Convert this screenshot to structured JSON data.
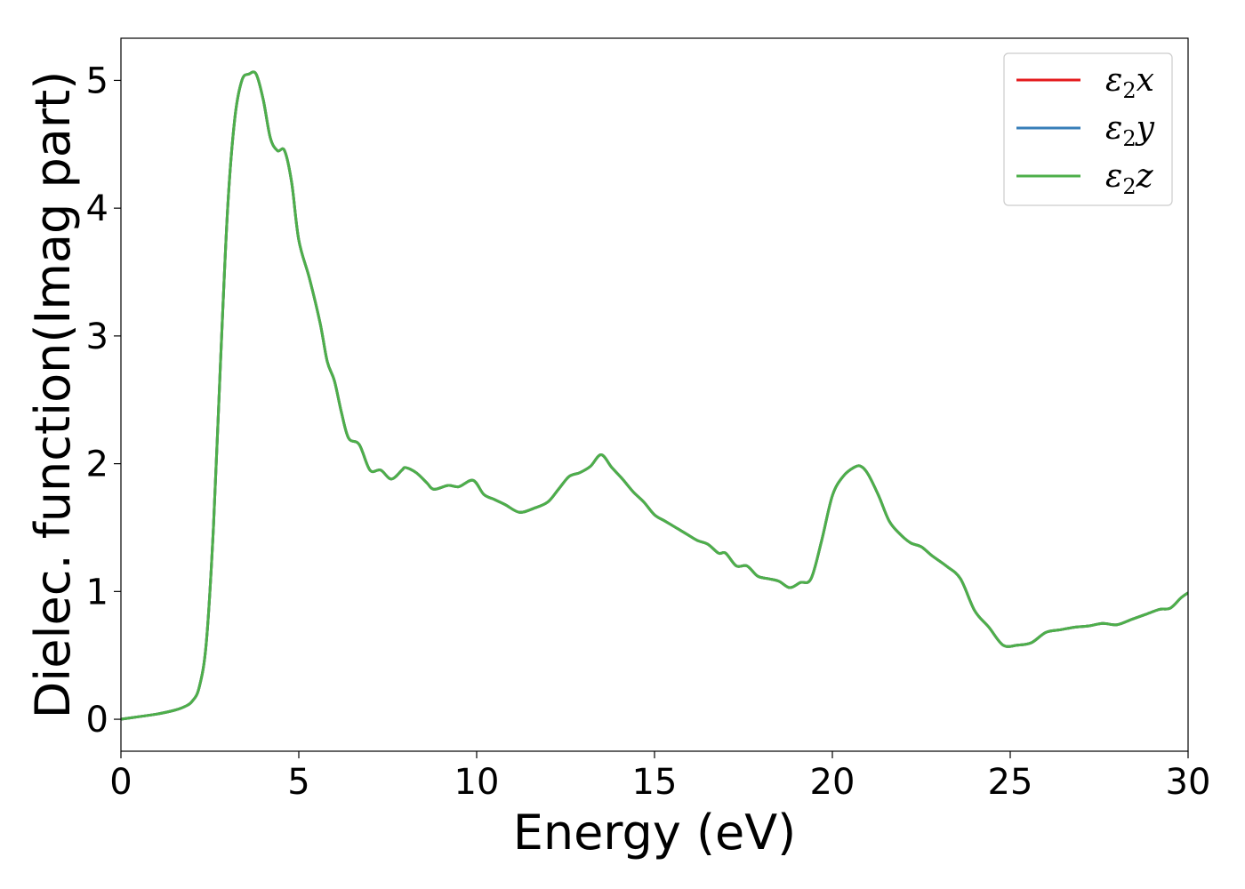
{
  "chart_data": {
    "type": "line",
    "title": "",
    "xlabel": "Energy (eV)",
    "ylabel": "Dielec. function(Imag part)",
    "xlim": [
      0,
      30
    ],
    "ylim": [
      -0.25,
      5.33
    ],
    "xticks": [
      0,
      5,
      10,
      15,
      20,
      25,
      30
    ],
    "yticks": [
      0,
      1,
      2,
      3,
      4,
      5
    ],
    "grid": false,
    "legend_position": "top-right",
    "series": [
      {
        "name": "ε2x",
        "label": {
          "base": "ε",
          "sub": "2",
          "var": "x"
        },
        "color": "#e41a1c",
        "x": [
          0,
          0.5,
          1.0,
          1.5,
          1.8,
          2.0,
          2.2,
          2.4,
          2.6,
          2.8,
          3.0,
          3.2,
          3.4,
          3.6,
          3.8,
          4.0,
          4.2,
          4.4,
          4.6,
          4.8,
          5.0,
          5.3,
          5.6,
          5.8,
          6.0,
          6.2,
          6.4,
          6.7,
          7.0,
          7.3,
          7.6,
          7.9,
          8.0,
          8.3,
          8.6,
          8.8,
          9.2,
          9.5,
          9.9,
          10.2,
          10.5,
          10.8,
          11.2,
          11.6,
          12.0,
          12.3,
          12.6,
          12.9,
          13.2,
          13.5,
          13.8,
          14.1,
          14.4,
          14.7,
          15.0,
          15.3,
          15.6,
          15.9,
          16.2,
          16.5,
          16.8,
          17.0,
          17.3,
          17.6,
          17.9,
          18.2,
          18.5,
          18.8,
          19.1,
          19.4,
          19.7,
          20.0,
          20.3,
          20.6,
          20.8,
          21.0,
          21.3,
          21.6,
          21.9,
          22.2,
          22.5,
          22.8,
          23.2,
          23.6,
          24.0,
          24.4,
          24.8,
          25.2,
          25.6,
          26.0,
          26.4,
          26.8,
          27.2,
          27.6,
          28.0,
          28.4,
          28.8,
          29.2,
          29.5,
          29.8,
          30.0
        ],
        "y": [
          0.0,
          0.02,
          0.04,
          0.07,
          0.1,
          0.14,
          0.25,
          0.6,
          1.5,
          2.8,
          4.0,
          4.7,
          5.0,
          5.05,
          5.05,
          4.85,
          4.55,
          4.45,
          4.45,
          4.2,
          3.75,
          3.45,
          3.1,
          2.8,
          2.65,
          2.4,
          2.2,
          2.15,
          1.95,
          1.95,
          1.88,
          1.95,
          1.97,
          1.93,
          1.85,
          1.8,
          1.83,
          1.82,
          1.87,
          1.76,
          1.72,
          1.68,
          1.62,
          1.65,
          1.7,
          1.8,
          1.9,
          1.93,
          1.98,
          2.07,
          1.97,
          1.88,
          1.78,
          1.7,
          1.6,
          1.55,
          1.5,
          1.45,
          1.4,
          1.37,
          1.3,
          1.3,
          1.2,
          1.2,
          1.12,
          1.1,
          1.08,
          1.03,
          1.07,
          1.1,
          1.4,
          1.75,
          1.9,
          1.97,
          1.98,
          1.92,
          1.75,
          1.55,
          1.45,
          1.38,
          1.35,
          1.28,
          1.2,
          1.1,
          0.85,
          0.72,
          0.58,
          0.58,
          0.6,
          0.68,
          0.7,
          0.72,
          0.73,
          0.75,
          0.74,
          0.78,
          0.82,
          0.86,
          0.87,
          0.95,
          0.99
        ]
      },
      {
        "name": "ε2y",
        "label": {
          "base": "ε",
          "sub": "2",
          "var": "y"
        },
        "color": "#377eb8",
        "x": [
          0,
          0.5,
          1.0,
          1.5,
          1.8,
          2.0,
          2.2,
          2.4,
          2.6,
          2.8,
          3.0,
          3.2,
          3.4,
          3.6,
          3.8,
          4.0,
          4.2,
          4.4,
          4.6,
          4.8,
          5.0,
          5.3,
          5.6,
          5.8,
          6.0,
          6.2,
          6.4,
          6.7,
          7.0,
          7.3,
          7.6,
          7.9,
          8.0,
          8.3,
          8.6,
          8.8,
          9.2,
          9.5,
          9.9,
          10.2,
          10.5,
          10.8,
          11.2,
          11.6,
          12.0,
          12.3,
          12.6,
          12.9,
          13.2,
          13.5,
          13.8,
          14.1,
          14.4,
          14.7,
          15.0,
          15.3,
          15.6,
          15.9,
          16.2,
          16.5,
          16.8,
          17.0,
          17.3,
          17.6,
          17.9,
          18.2,
          18.5,
          18.8,
          19.1,
          19.4,
          19.7,
          20.0,
          20.3,
          20.6,
          20.8,
          21.0,
          21.3,
          21.6,
          21.9,
          22.2,
          22.5,
          22.8,
          23.2,
          23.6,
          24.0,
          24.4,
          24.8,
          25.2,
          25.6,
          26.0,
          26.4,
          26.8,
          27.2,
          27.6,
          28.0,
          28.4,
          28.8,
          29.2,
          29.5,
          29.8,
          30.0
        ],
        "y": [
          0.0,
          0.02,
          0.04,
          0.07,
          0.1,
          0.14,
          0.25,
          0.6,
          1.5,
          2.8,
          4.0,
          4.7,
          5.0,
          5.05,
          5.05,
          4.85,
          4.55,
          4.45,
          4.45,
          4.2,
          3.75,
          3.45,
          3.1,
          2.8,
          2.65,
          2.4,
          2.2,
          2.15,
          1.95,
          1.95,
          1.88,
          1.95,
          1.97,
          1.93,
          1.85,
          1.8,
          1.83,
          1.82,
          1.87,
          1.76,
          1.72,
          1.68,
          1.62,
          1.65,
          1.7,
          1.8,
          1.9,
          1.93,
          1.98,
          2.07,
          1.97,
          1.88,
          1.78,
          1.7,
          1.6,
          1.55,
          1.5,
          1.45,
          1.4,
          1.37,
          1.3,
          1.3,
          1.2,
          1.2,
          1.12,
          1.1,
          1.08,
          1.03,
          1.07,
          1.1,
          1.4,
          1.75,
          1.9,
          1.97,
          1.98,
          1.92,
          1.75,
          1.55,
          1.45,
          1.38,
          1.35,
          1.28,
          1.2,
          1.1,
          0.85,
          0.72,
          0.58,
          0.58,
          0.6,
          0.68,
          0.7,
          0.72,
          0.73,
          0.75,
          0.74,
          0.78,
          0.82,
          0.86,
          0.87,
          0.95,
          0.99
        ]
      },
      {
        "name": "ε2z",
        "label": {
          "base": "ε",
          "sub": "2",
          "var": "z"
        },
        "color": "#4daf4a",
        "x": [
          0,
          0.5,
          1.0,
          1.5,
          1.8,
          2.0,
          2.2,
          2.4,
          2.6,
          2.8,
          3.0,
          3.2,
          3.4,
          3.6,
          3.8,
          4.0,
          4.2,
          4.4,
          4.6,
          4.8,
          5.0,
          5.3,
          5.6,
          5.8,
          6.0,
          6.2,
          6.4,
          6.7,
          7.0,
          7.3,
          7.6,
          7.9,
          8.0,
          8.3,
          8.6,
          8.8,
          9.2,
          9.5,
          9.9,
          10.2,
          10.5,
          10.8,
          11.2,
          11.6,
          12.0,
          12.3,
          12.6,
          12.9,
          13.2,
          13.5,
          13.8,
          14.1,
          14.4,
          14.7,
          15.0,
          15.3,
          15.6,
          15.9,
          16.2,
          16.5,
          16.8,
          17.0,
          17.3,
          17.6,
          17.9,
          18.2,
          18.5,
          18.8,
          19.1,
          19.4,
          19.7,
          20.0,
          20.3,
          20.6,
          20.8,
          21.0,
          21.3,
          21.6,
          21.9,
          22.2,
          22.5,
          22.8,
          23.2,
          23.6,
          24.0,
          24.4,
          24.8,
          25.2,
          25.6,
          26.0,
          26.4,
          26.8,
          27.2,
          27.6,
          28.0,
          28.4,
          28.8,
          29.2,
          29.5,
          29.8,
          30.0
        ],
        "y": [
          0.0,
          0.02,
          0.04,
          0.07,
          0.1,
          0.14,
          0.25,
          0.6,
          1.5,
          2.8,
          4.0,
          4.7,
          5.0,
          5.05,
          5.05,
          4.85,
          4.55,
          4.45,
          4.45,
          4.2,
          3.75,
          3.45,
          3.1,
          2.8,
          2.65,
          2.4,
          2.2,
          2.15,
          1.95,
          1.95,
          1.88,
          1.95,
          1.97,
          1.93,
          1.85,
          1.8,
          1.83,
          1.82,
          1.87,
          1.76,
          1.72,
          1.68,
          1.62,
          1.65,
          1.7,
          1.8,
          1.9,
          1.93,
          1.98,
          2.07,
          1.97,
          1.88,
          1.78,
          1.7,
          1.6,
          1.55,
          1.5,
          1.45,
          1.4,
          1.37,
          1.3,
          1.3,
          1.2,
          1.2,
          1.12,
          1.1,
          1.08,
          1.03,
          1.07,
          1.1,
          1.4,
          1.75,
          1.9,
          1.97,
          1.98,
          1.92,
          1.75,
          1.55,
          1.45,
          1.38,
          1.35,
          1.28,
          1.2,
          1.1,
          0.85,
          0.72,
          0.58,
          0.58,
          0.6,
          0.68,
          0.7,
          0.72,
          0.73,
          0.75,
          0.74,
          0.78,
          0.82,
          0.86,
          0.87,
          0.95,
          0.99
        ]
      }
    ]
  }
}
